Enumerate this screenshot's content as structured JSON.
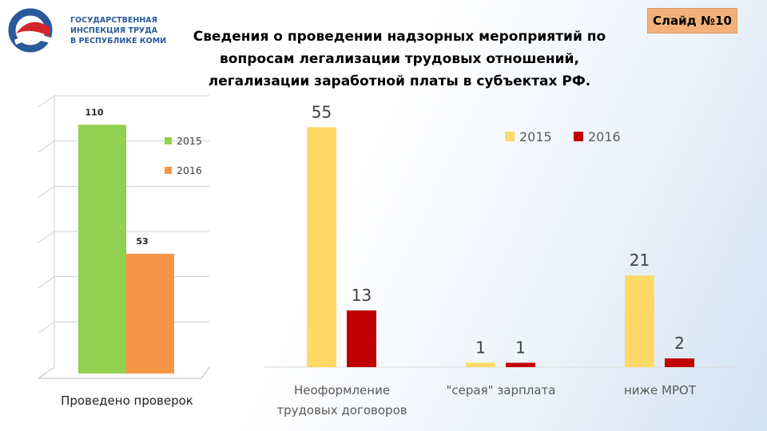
{
  "header": {
    "logo_lines": [
      "ГОСУДАРСТВЕННАЯ",
      "ИНСПЕКЦИЯ ТРУДА",
      "В РЕСПУБЛИКЕ КОМИ"
    ],
    "slide_label": "Слайд №10",
    "title_lines": [
      "Сведения о проведении надзорных мероприятий по",
      "вопросам легализации трудовых отношений,",
      "легализации заработной платы в субъектах РФ."
    ]
  },
  "colors": {
    "left_2015": "#92d050",
    "left_2016": "#f79646",
    "right_2015": "#ffd966",
    "right_2016": "#c00000",
    "logo_blue": "#2a5a9c",
    "logo_red": "#d6262b"
  },
  "chart_data": [
    {
      "type": "bar",
      "title": "",
      "categories": [
        "Проведено проверок"
      ],
      "series": [
        {
          "name": "2015",
          "values": [
            110
          ]
        },
        {
          "name": "2016",
          "values": [
            53
          ]
        }
      ],
      "ylim": [
        0,
        120
      ],
      "grid": true,
      "legend": "top-right"
    },
    {
      "type": "bar",
      "title": "",
      "categories": [
        "Неоформление трудовых договоров",
        "\"серая\" зарплата",
        "ниже МРОТ"
      ],
      "series": [
        {
          "name": "2015",
          "values": [
            55,
            1,
            21
          ]
        },
        {
          "name": "2016",
          "values": [
            13,
            1,
            2
          ]
        }
      ],
      "ylim": [
        0,
        60
      ],
      "grid": false,
      "legend": "top-right"
    }
  ]
}
